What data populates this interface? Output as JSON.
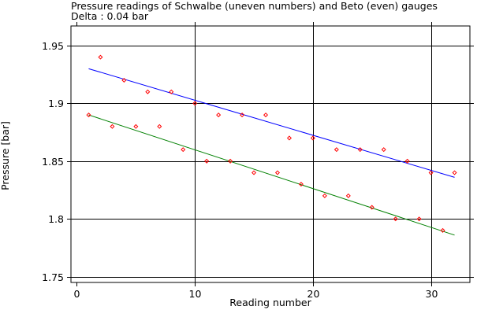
{
  "chart_data": {
    "type": "scatter",
    "title": "Pressure readings of Schwalbe (uneven numbers) and Beto (even) gauges",
    "subtitle": "Delta : 0.04 bar",
    "xlabel": "Reading number",
    "ylabel": "Pressure [bar]",
    "xlim": [
      -0.5,
      33.3
    ],
    "ylim": [
      1.745,
      1.967
    ],
    "x_ticks": [
      0,
      10,
      20,
      30
    ],
    "x_tick_labels": [
      "0",
      "10",
      "20",
      "30"
    ],
    "y_ticks": [
      1.75,
      1.8,
      1.85,
      1.9,
      1.95
    ],
    "y_tick_labels": [
      "1.75",
      "1.8",
      "1.85",
      "1.9",
      "1.95"
    ],
    "grid": true,
    "grid_x": [
      10,
      20,
      30
    ],
    "grid_y": [
      1.75,
      1.8,
      1.85,
      1.9,
      1.95
    ],
    "point_color": "#ff0000",
    "points": [
      {
        "x": 1,
        "y": 1.89
      },
      {
        "x": 2,
        "y": 1.94
      },
      {
        "x": 3,
        "y": 1.88
      },
      {
        "x": 4,
        "y": 1.92
      },
      {
        "x": 5,
        "y": 1.88
      },
      {
        "x": 6,
        "y": 1.91
      },
      {
        "x": 7,
        "y": 1.88
      },
      {
        "x": 8,
        "y": 1.91
      },
      {
        "x": 9,
        "y": 1.86
      },
      {
        "x": 10,
        "y": 1.9
      },
      {
        "x": 11,
        "y": 1.85
      },
      {
        "x": 12,
        "y": 1.89
      },
      {
        "x": 13,
        "y": 1.85
      },
      {
        "x": 14,
        "y": 1.89
      },
      {
        "x": 15,
        "y": 1.84
      },
      {
        "x": 16,
        "y": 1.89
      },
      {
        "x": 17,
        "y": 1.84
      },
      {
        "x": 18,
        "y": 1.87
      },
      {
        "x": 19,
        "y": 1.83
      },
      {
        "x": 20,
        "y": 1.87
      },
      {
        "x": 21,
        "y": 1.82
      },
      {
        "x": 22,
        "y": 1.86
      },
      {
        "x": 23,
        "y": 1.82
      },
      {
        "x": 24,
        "y": 1.86
      },
      {
        "x": 25,
        "y": 1.81
      },
      {
        "x": 26,
        "y": 1.86
      },
      {
        "x": 27,
        "y": 1.8
      },
      {
        "x": 28,
        "y": 1.85
      },
      {
        "x": 29,
        "y": 1.8
      },
      {
        "x": 30,
        "y": 1.84
      },
      {
        "x": 31,
        "y": 1.79
      },
      {
        "x": 32,
        "y": 1.84
      }
    ],
    "fit_lines": [
      {
        "color": "#0000ff",
        "x1": 1,
        "y1": 1.93,
        "x2": 32,
        "y2": 1.836
      },
      {
        "color": "#008000",
        "x1": 1,
        "y1": 1.89,
        "x2": 32,
        "y2": 1.786
      }
    ]
  }
}
